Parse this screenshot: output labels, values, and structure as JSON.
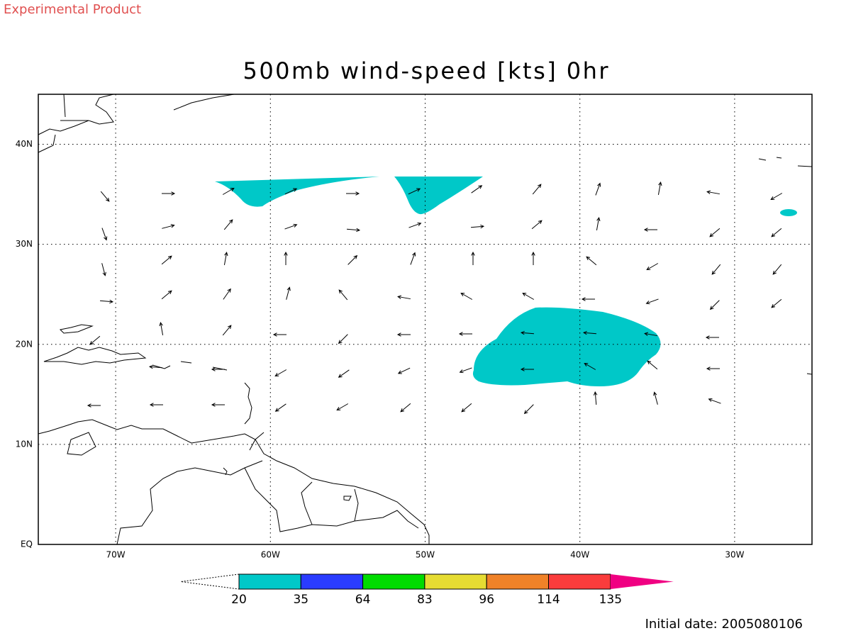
{
  "header": {
    "label": "Experimental Product"
  },
  "map": {
    "title": "500mb wind-speed [kts] 0hr",
    "lon_range": [
      -75,
      -25
    ],
    "lat_range": [
      0,
      45
    ],
    "lon_ticks": [
      {
        "value": -70,
        "label": "70W"
      },
      {
        "value": -60,
        "label": "60W"
      },
      {
        "value": -50,
        "label": "50W"
      },
      {
        "value": -40,
        "label": "40W"
      },
      {
        "value": -30,
        "label": "30W"
      }
    ],
    "lat_ticks": [
      {
        "value": 0,
        "label": "EQ"
      },
      {
        "value": 10,
        "label": "10N"
      },
      {
        "value": 20,
        "label": "20N"
      },
      {
        "value": 30,
        "label": "30N"
      },
      {
        "value": 40,
        "label": "40N"
      }
    ]
  },
  "colorbar": {
    "levels": [
      20,
      35,
      64,
      83,
      96,
      114,
      135
    ],
    "colors": [
      "#00c8c8",
      "#2a3cff",
      "#00dc00",
      "#e6dc32",
      "#f08228",
      "#fa3c3c",
      "#f00082"
    ]
  },
  "footer": {
    "initial_date": "Initial date: 2005080106"
  }
}
